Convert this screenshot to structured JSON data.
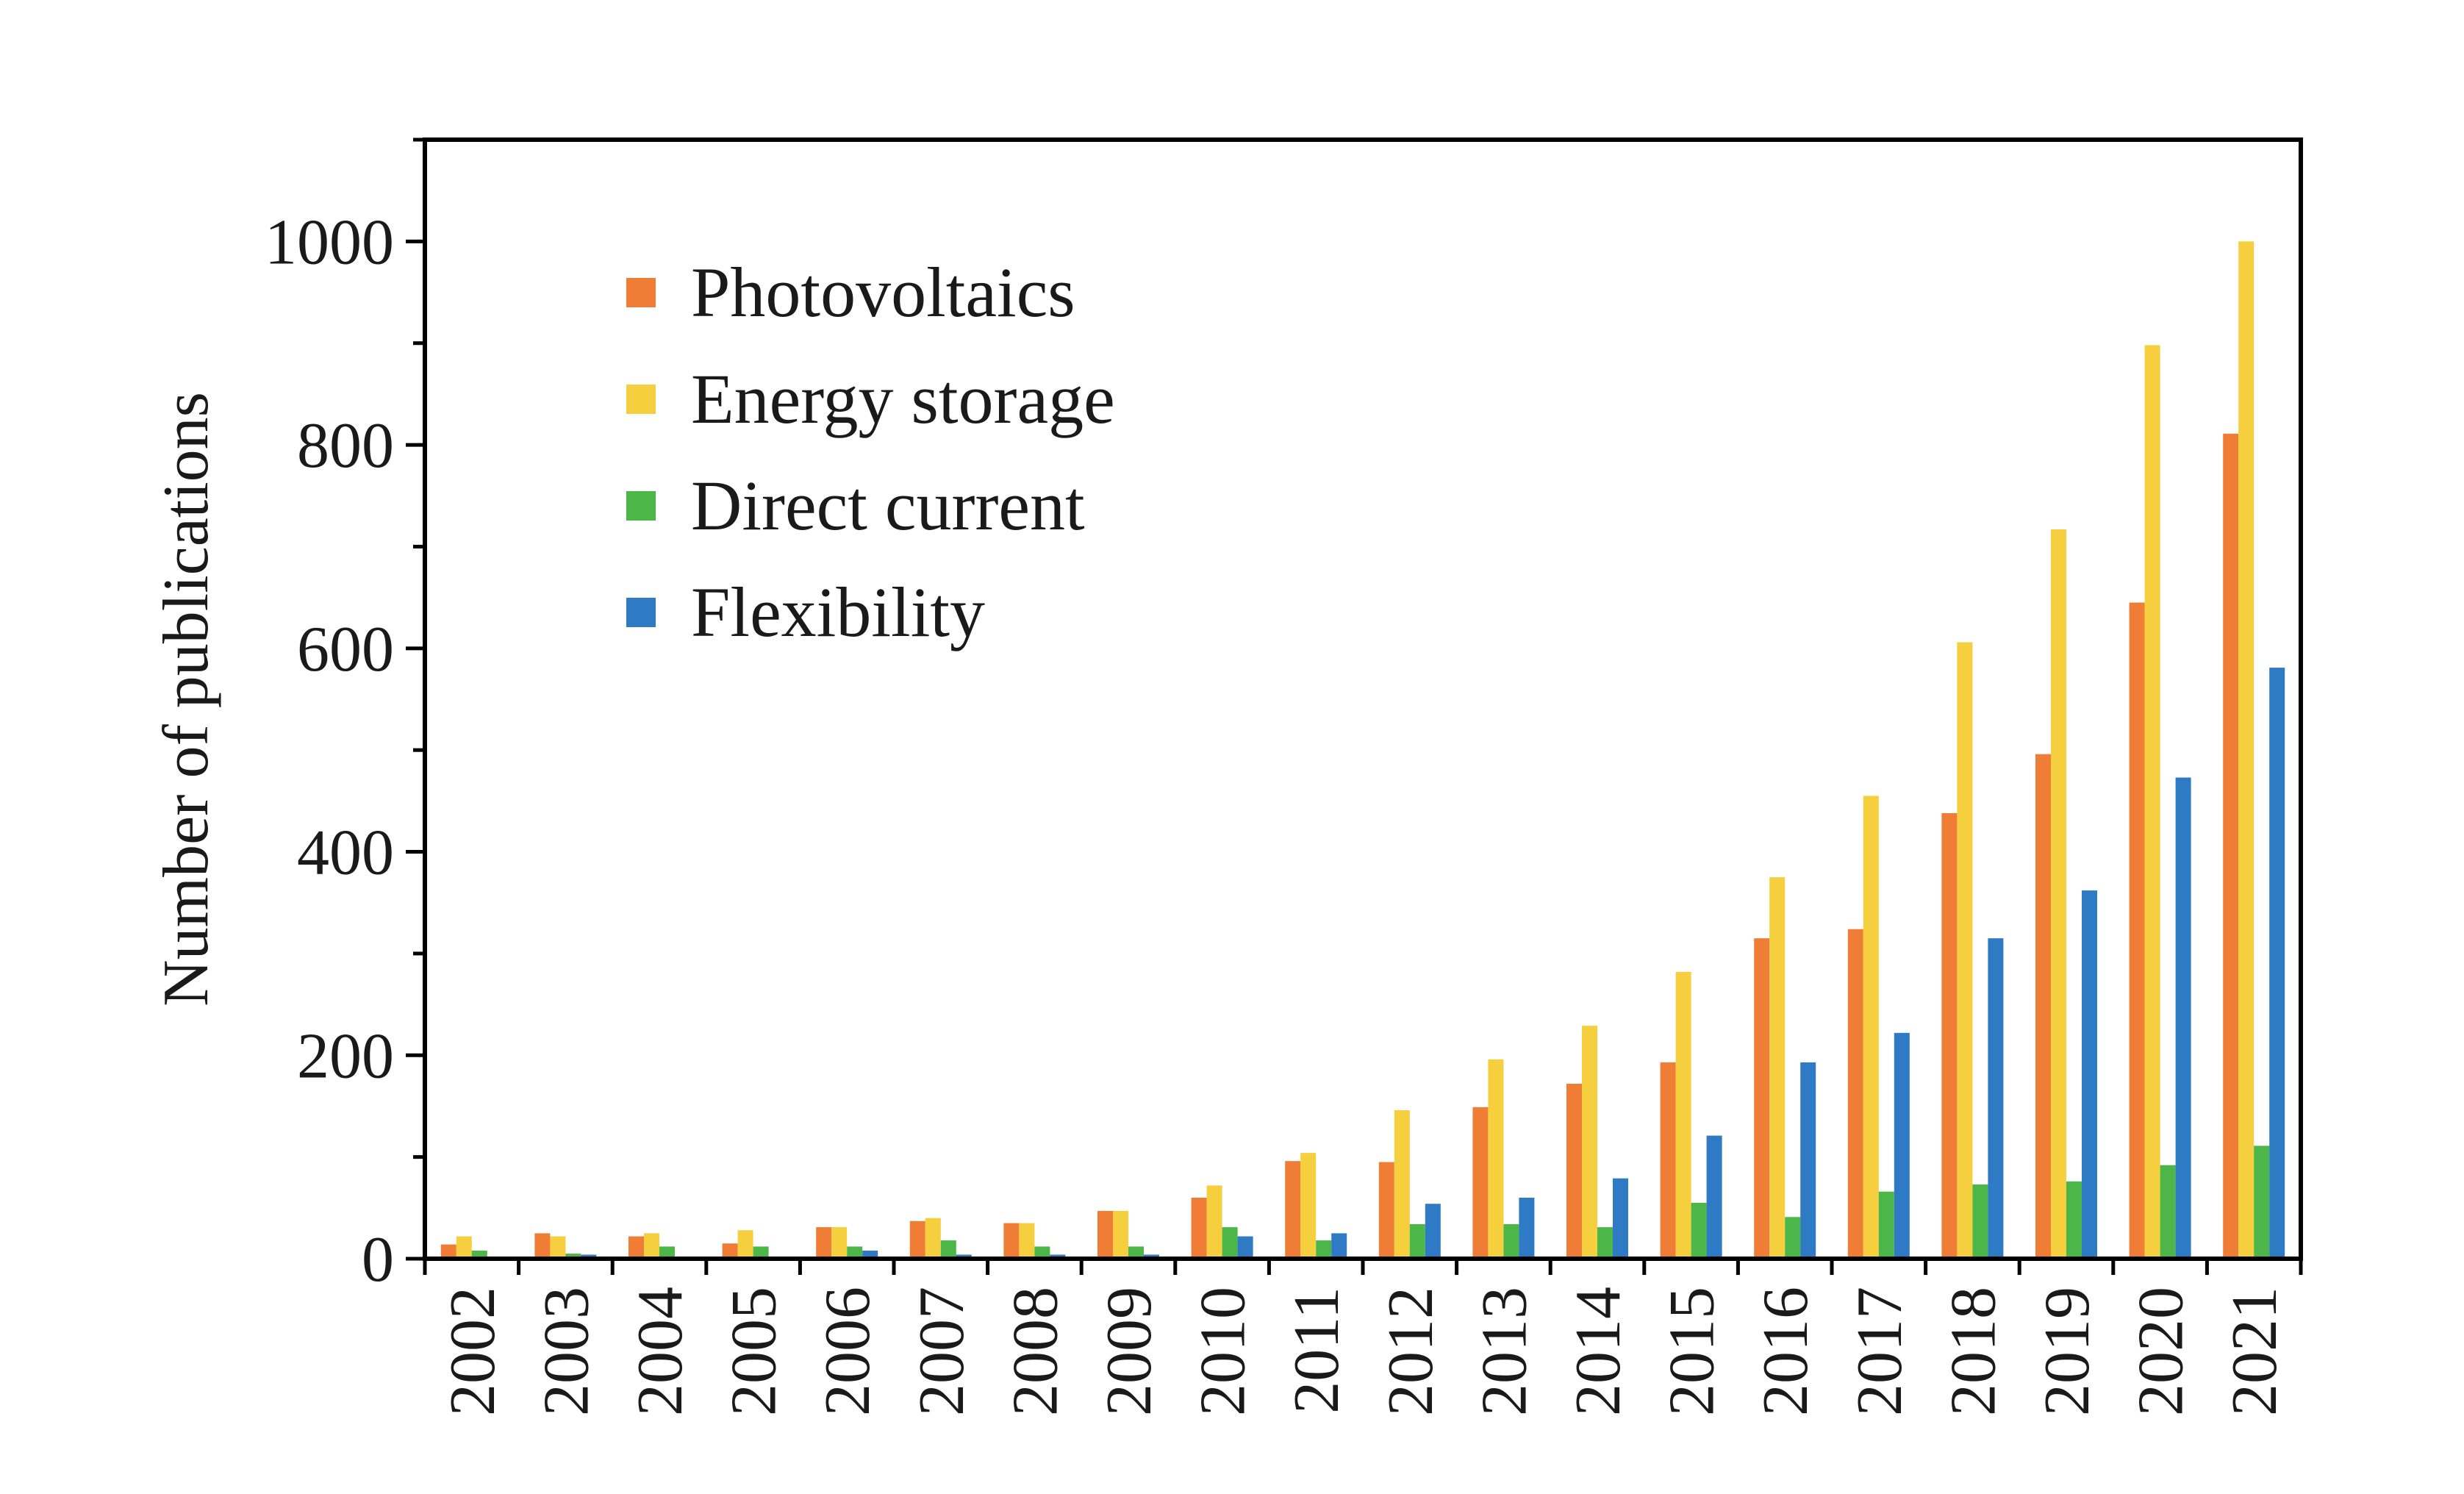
{
  "chart_data": {
    "type": "bar",
    "xlabel": "",
    "ylabel": "Number of publications",
    "ylim": [
      0,
      1100
    ],
    "yticks": [
      0,
      200,
      400,
      600,
      800,
      1000
    ],
    "grid": false,
    "legend_position": "top-left",
    "categories": [
      "2002",
      "2003",
      "2004",
      "2005",
      "2006",
      "2007",
      "2008",
      "2009",
      "2010",
      "2011",
      "2012",
      "2013",
      "2014",
      "2015",
      "2016",
      "2017",
      "2018",
      "2019",
      "2020",
      "2021"
    ],
    "series": [
      {
        "name": "Photovoltaics",
        "color": "#f07d35",
        "values": [
          14,
          25,
          22,
          15,
          31,
          37,
          35,
          47,
          60,
          96,
          95,
          149,
          172,
          193,
          315,
          324,
          438,
          496,
          645,
          811
        ]
      },
      {
        "name": "Energy storage",
        "color": "#f5cf3e",
        "values": [
          22,
          22,
          25,
          28,
          31,
          40,
          35,
          47,
          72,
          104,
          146,
          196,
          229,
          282,
          375,
          455,
          606,
          717,
          898,
          1000
        ]
      },
      {
        "name": "Direct current",
        "color": "#4cb748",
        "values": [
          8,
          5,
          12,
          12,
          12,
          18,
          12,
          12,
          31,
          18,
          34,
          34,
          31,
          55,
          41,
          66,
          73,
          76,
          92,
          111
        ]
      },
      {
        "name": "Flexibility",
        "color": "#2f7ac4",
        "values": [
          0,
          4,
          0,
          0,
          8,
          4,
          4,
          4,
          22,
          25,
          54,
          60,
          79,
          121,
          193,
          222,
          315,
          362,
          473,
          581
        ]
      }
    ]
  }
}
